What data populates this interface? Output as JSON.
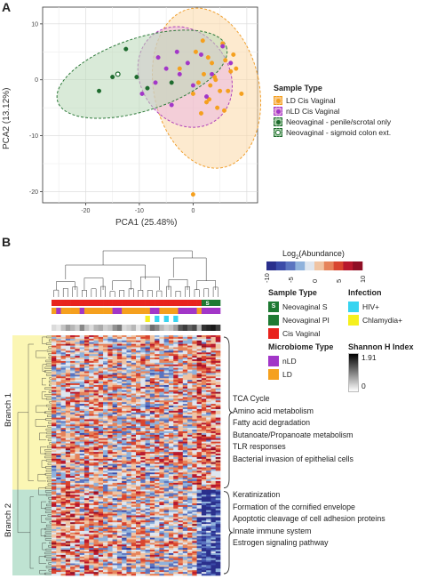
{
  "panel_a": {
    "letter": "A",
    "legend": {
      "title": "Sample Type",
      "items": [
        {
          "label": "LD Cis Vaginal",
          "color": "#f5a01e",
          "fill": "#f8c98a",
          "shape": "circle",
          "ring": true
        },
        {
          "label": "nLD Cis Vaginal",
          "color": "#a236c8",
          "fill": "#e1a6d9",
          "shape": "circle",
          "ring": true
        },
        {
          "label": "Neovaginal - penile/scrotal only",
          "color": "#1e6b2e",
          "fill": "#a7cfa8",
          "shape": "circle",
          "ring": true
        },
        {
          "label": "Neovaginal - sigmoid colon ext.",
          "color": "#1e6b2e",
          "fill": "#a7cfa8",
          "shape": "ring",
          "ring": true
        }
      ]
    },
    "chart_data": {
      "type": "scatter",
      "xlabel": "PCA1 (25.48%)",
      "ylabel": "PCA2 (13.12%)",
      "xlim": [
        -28,
        12
      ],
      "ylim": [
        -22,
        13
      ],
      "xticks": [
        "-20",
        "-10",
        "0"
      ],
      "xtick_values": [
        -20,
        -10,
        0
      ],
      "yticks": [
        "10",
        "0",
        "-10",
        "-20"
      ],
      "ytick_values": [
        10,
        0,
        -10,
        -20
      ],
      "grid": true,
      "ellipses": [
        {
          "group": "LD Cis Vaginal",
          "cx": 2.5,
          "cy": -1.5,
          "rx": 9.8,
          "ry": 14.5,
          "angle": 12,
          "fill": "#fbd9a8",
          "stroke": "#f0a030"
        },
        {
          "group": "nLD Cis Vaginal",
          "cx": -1.5,
          "cy": 0.5,
          "rx": 8.2,
          "ry": 9.5,
          "angle": 35,
          "fill": "#ebb6e0",
          "stroke": "#b040b8"
        },
        {
          "group": "Neovaginal",
          "cx": -9.5,
          "cy": 1.0,
          "rx": 16.5,
          "ry": 6.5,
          "angle": 18,
          "fill": "#b9d9b8",
          "stroke": "#2e7a3a"
        }
      ],
      "series": [
        {
          "name": "LD Cis Vaginal",
          "color": "#f5a01e",
          "x": [
            -2.5,
            0.5,
            1.0,
            2.0,
            3.5,
            4.0,
            5.0,
            6.0,
            7.0,
            2.5,
            0.0,
            1.5,
            3.0,
            4.5,
            6.5,
            7.5,
            8.0,
            9.0,
            5.5,
            1.8,
            3.2,
            5.8,
            4.2,
            2.8,
            0.0
          ],
          "y": [
            2.0,
            5.0,
            -0.5,
            1.0,
            3.0,
            0.5,
            -2.0,
            3.5,
            1.5,
            -4.0,
            -2.5,
            -6.0,
            -3.5,
            -5.0,
            -2.0,
            4.5,
            2.0,
            -2.5,
            6.5,
            7.0,
            -1.0,
            -5.5,
            0.0,
            4.0,
            -20.5
          ]
        },
        {
          "name": "nLD Cis Vaginal",
          "color": "#a236c8",
          "x": [
            -9.5,
            -7.0,
            -5.0,
            -4.0,
            -3.0,
            -2.5,
            -1.0,
            0.0,
            1.5,
            2.5,
            3.5,
            5.5,
            7.0,
            -6.5
          ],
          "y": [
            -2.5,
            -0.5,
            2.0,
            -4.5,
            5.0,
            1.0,
            3.0,
            -1.0,
            4.5,
            -3.0,
            1.0,
            6.0,
            3.0,
            4.0
          ]
        },
        {
          "name": "Neovaginal - penile/scrotal only",
          "color": "#1e6b2e",
          "x": [
            -17.5,
            -15.0,
            -12.5,
            -10.5,
            -8.5,
            -4.0
          ],
          "y": [
            -2.0,
            0.5,
            5.5,
            0.5,
            -1.5,
            -0.5
          ]
        },
        {
          "name": "Neovaginal - sigmoid colon ext.",
          "color": "#1e6b2e",
          "x": [
            -14.0
          ],
          "y": [
            1.0
          ]
        }
      ]
    }
  },
  "panel_b": {
    "letter": "B",
    "colorbar": {
      "title_prefix": "Log",
      "title_sub": "2",
      "title_suffix": "(Abundance)",
      "ticks": [
        "-10",
        "-5",
        "0",
        "5",
        "10"
      ],
      "colors": [
        "#2a2f8c",
        "#3b4ba8",
        "#5a74c0",
        "#8fb2dc",
        "#dfe6ef",
        "#f0c4a3",
        "#e6835a",
        "#d9452f",
        "#b8182d",
        "#8f0f25"
      ]
    },
    "legend_sample_type": {
      "title": "Sample Type",
      "items": [
        {
          "label": "Neovaginal S",
          "color": "#1e7a33",
          "badge": "S"
        },
        {
          "label": "Neovaginal PI",
          "color": "#1e7a33",
          "badge": ""
        },
        {
          "label": "Cis Vaginal",
          "color": "#e8231d",
          "badge": ""
        }
      ]
    },
    "legend_infection": {
      "title": "Infection",
      "items": [
        {
          "label": "HIV+",
          "color": "#37d4f0"
        },
        {
          "label": "Chlamydia+",
          "color": "#f5f01e"
        }
      ]
    },
    "legend_microbiome": {
      "title": "Microbiome Type",
      "items": [
        {
          "label": "nLD",
          "color": "#a236c8"
        },
        {
          "label": "LD",
          "color": "#f5a01e"
        }
      ]
    },
    "legend_shannon": {
      "title": "Shannon H Index",
      "max": "1.91",
      "min": "0"
    },
    "branch1": {
      "label": "Branch 1",
      "color": "#fbf6b4"
    },
    "branch2": {
      "label": "Branch 2",
      "color": "#bfe3d2"
    },
    "pathways_branch1": [
      "TCA Cycle",
      "Amino acid metabolism",
      "Fatty acid degradation",
      "Butanoate/Propanoate metabolism",
      "TLR responses",
      "Bacterial invasion of epithelial cells"
    ],
    "pathways_branch2": [
      "Keratinization",
      "Formation of the cornified envelope",
      "Apoptotic cleavage of cell adhesion proteins",
      "Innate immune system",
      "Estrogen signaling pathway"
    ],
    "chart_data": {
      "type": "heatmap",
      "columns": 36,
      "rows": 140,
      "branch1_rows": 90,
      "branch2_rows": 50,
      "value_range": [
        -10,
        10
      ],
      "sample_type_row": [
        "C",
        "C",
        "C",
        "C",
        "C",
        "C",
        "C",
        "C",
        "C",
        "C",
        "C",
        "C",
        "C",
        "C",
        "C",
        "C",
        "C",
        "C",
        "C",
        "C",
        "C",
        "C",
        "C",
        "C",
        "C",
        "C",
        "C",
        "C",
        "C",
        "C",
        "C",
        "C",
        "S",
        "S",
        "P",
        "P"
      ],
      "microbiome_row": [
        "L",
        "N",
        "L",
        "L",
        "L",
        "L",
        "N",
        "L",
        "L",
        "L",
        "L",
        "L",
        "L",
        "N",
        "N",
        "L",
        "L",
        "L",
        "L",
        "L",
        "L",
        "N",
        "N",
        "L",
        "L",
        "L",
        "L",
        "N",
        "N",
        "N",
        "N",
        "L",
        "N",
        "N",
        "N",
        "N"
      ],
      "infection_row": [
        "",
        "",
        "",
        "",
        "",
        "",
        "",
        "",
        "",
        "",
        "",
        "",
        "",
        "",
        "",
        "",
        "",
        "",
        "",
        "",
        "Y",
        "",
        "C",
        "",
        "C",
        "",
        "C",
        "",
        "",
        "",
        "",
        "",
        "",
        "",
        "",
        ""
      ],
      "shannon_row": [
        0.3,
        0.2,
        0.5,
        0.8,
        0.6,
        0.4,
        1.0,
        0.5,
        0.3,
        0.6,
        0.7,
        0.4,
        0.5,
        0.9,
        1.1,
        0.3,
        0.4,
        0.6,
        0.2,
        0.5,
        0.7,
        1.2,
        1.0,
        0.6,
        0.4,
        0.5,
        0.8,
        1.4,
        1.6,
        1.3,
        1.5,
        0.6,
        1.7,
        1.8,
        1.9,
        1.6
      ]
    }
  }
}
